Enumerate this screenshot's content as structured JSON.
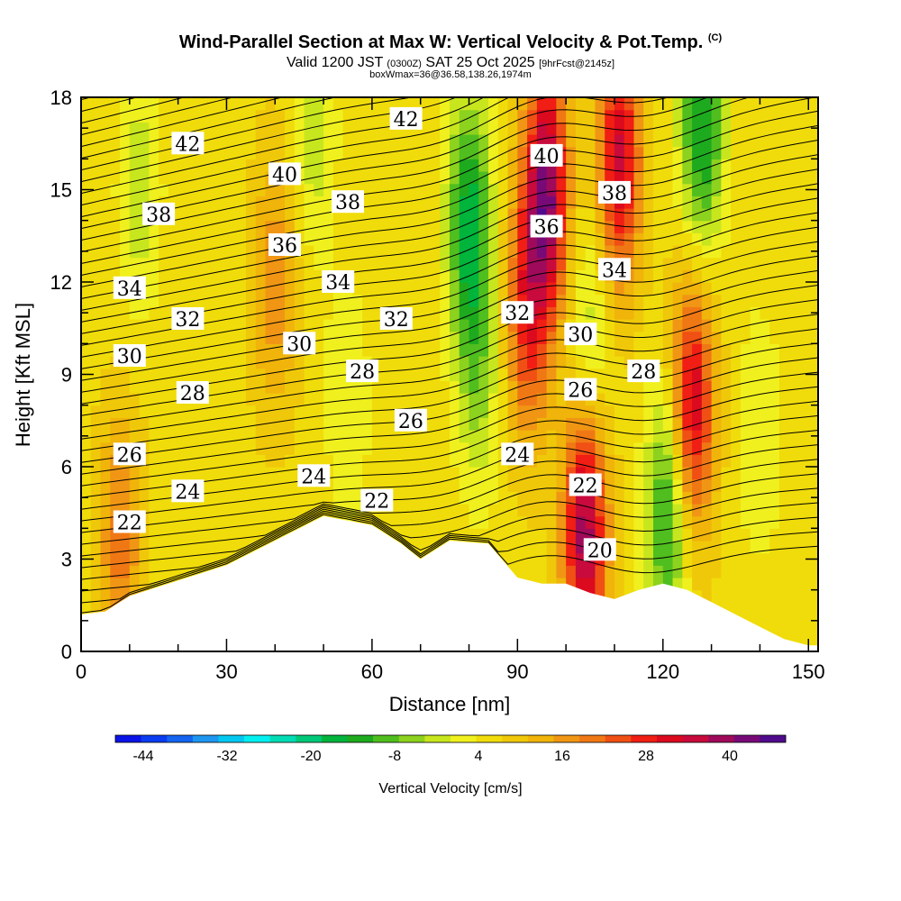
{
  "header": {
    "title_main": "Wind-Parallel Section at Max W: Vertical Velocity & Pot.Temp.",
    "title_copyright": "(C)",
    "valid_prefix": "Valid 1200 JST",
    "valid_utc": "(0300Z)",
    "valid_date": "SAT 25 Oct 2025",
    "valid_fcst": "[9hrFcst@2145z]",
    "box_info": "boxWmax=36@36.58,138.26,1974m"
  },
  "chart_data": {
    "type": "heatmap",
    "xlabel": "Distance [nm]",
    "ylabel": "Height [Kft MSL]",
    "xlim": [
      0,
      152
    ],
    "ylim": [
      0,
      18
    ],
    "x_ticks": [
      0,
      30,
      60,
      90,
      120,
      150
    ],
    "y_ticks": [
      0,
      3,
      6,
      9,
      12,
      15,
      18
    ],
    "colorbar": {
      "title": "Vertical Velocity [cm/s]",
      "ticks": [
        -44,
        -32,
        -20,
        -8,
        4,
        16,
        28,
        40
      ],
      "min": -48,
      "max": 48,
      "colors": [
        "#0a14e6",
        "#0a3cf0",
        "#1464f0",
        "#1e96f0",
        "#00c8f0",
        "#00f0f0",
        "#00dcb4",
        "#00c878",
        "#00b43c",
        "#1eaa1e",
        "#50be1e",
        "#8cd21e",
        "#c8e61e",
        "#f0f01e",
        "#f0dc0a",
        "#f0c80a",
        "#f0b40a",
        "#f09614",
        "#f07814",
        "#f05014",
        "#f01e14",
        "#dc0a1e",
        "#c80a3c",
        "#a00a5a",
        "#780a78",
        "#500a8c"
      ]
    },
    "terrain": {
      "x": [
        0,
        5,
        10,
        20,
        30,
        40,
        50,
        60,
        66,
        70,
        76,
        84,
        90,
        95,
        100,
        105,
        110,
        115,
        120,
        125,
        130,
        135,
        140,
        145,
        150,
        152
      ],
      "height": [
        1.2,
        1.3,
        1.8,
        2.3,
        2.8,
        3.6,
        4.4,
        4.1,
        3.5,
        3.0,
        3.6,
        3.5,
        2.4,
        2.2,
        2.2,
        1.9,
        1.7,
        2.0,
        2.2,
        2.0,
        1.6,
        1.2,
        0.8,
        0.4,
        0.2,
        0.2
      ]
    },
    "velocity_features": [
      {
        "x": 12,
        "y": 15,
        "w": -8
      },
      {
        "x": 48,
        "y": 17,
        "w": -8
      },
      {
        "x": 80,
        "y": 14,
        "w": -22
      },
      {
        "x": 82,
        "y": 9,
        "w": -10
      },
      {
        "x": 96,
        "y": 15,
        "w": 34
      },
      {
        "x": 92,
        "y": 11,
        "w": 20
      },
      {
        "x": 104,
        "y": 4,
        "w": 34
      },
      {
        "x": 105,
        "y": 10,
        "w": -10
      },
      {
        "x": 111,
        "y": 16,
        "w": 28
      },
      {
        "x": 128,
        "y": 17,
        "w": -22
      },
      {
        "x": 126,
        "y": 8,
        "w": 28
      },
      {
        "x": 121,
        "y": 4.5,
        "w": -20
      },
      {
        "x": 40,
        "y": 12,
        "w": 12
      },
      {
        "x": 8,
        "y": 3.5,
        "w": 14
      },
      {
        "x": 55,
        "y": 8,
        "w": -6
      },
      {
        "x": 140,
        "y": 7,
        "w": -6
      }
    ],
    "isentropes_K": [
      20,
      22,
      24,
      26,
      28,
      30,
      32,
      34,
      36,
      38,
      40,
      42
    ],
    "contour_labels": [
      {
        "text": "42",
        "x": 22,
        "y": 16.5
      },
      {
        "text": "42",
        "x": 67,
        "y": 17.3
      },
      {
        "text": "40",
        "x": 42,
        "y": 15.5
      },
      {
        "text": "40",
        "x": 96,
        "y": 16.1
      },
      {
        "text": "38",
        "x": 16,
        "y": 14.2
      },
      {
        "text": "38",
        "x": 55,
        "y": 14.6
      },
      {
        "text": "38",
        "x": 110,
        "y": 14.9
      },
      {
        "text": "36",
        "x": 42,
        "y": 13.2
      },
      {
        "text": "36",
        "x": 96,
        "y": 13.8
      },
      {
        "text": "34",
        "x": 10,
        "y": 11.8
      },
      {
        "text": "34",
        "x": 53,
        "y": 12.0
      },
      {
        "text": "34",
        "x": 110,
        "y": 12.4
      },
      {
        "text": "32",
        "x": 22,
        "y": 10.8
      },
      {
        "text": "32",
        "x": 65,
        "y": 10.8
      },
      {
        "text": "32",
        "x": 90,
        "y": 11.0
      },
      {
        "text": "30",
        "x": 10,
        "y": 9.6
      },
      {
        "text": "30",
        "x": 45,
        "y": 10.0
      },
      {
        "text": "30",
        "x": 103,
        "y": 10.3
      },
      {
        "text": "28",
        "x": 23,
        "y": 8.4
      },
      {
        "text": "28",
        "x": 58,
        "y": 9.1
      },
      {
        "text": "28",
        "x": 116,
        "y": 9.1
      },
      {
        "text": "26",
        "x": 10,
        "y": 6.4
      },
      {
        "text": "26",
        "x": 68,
        "y": 7.5
      },
      {
        "text": "26",
        "x": 103,
        "y": 8.5
      },
      {
        "text": "24",
        "x": 22,
        "y": 5.2
      },
      {
        "text": "24",
        "x": 48,
        "y": 5.7
      },
      {
        "text": "24",
        "x": 90,
        "y": 6.4
      },
      {
        "text": "22",
        "x": 10,
        "y": 4.2
      },
      {
        "text": "22",
        "x": 61,
        "y": 4.9
      },
      {
        "text": "22",
        "x": 104,
        "y": 5.4
      },
      {
        "text": "20",
        "x": 107,
        "y": 3.3
      }
    ]
  }
}
